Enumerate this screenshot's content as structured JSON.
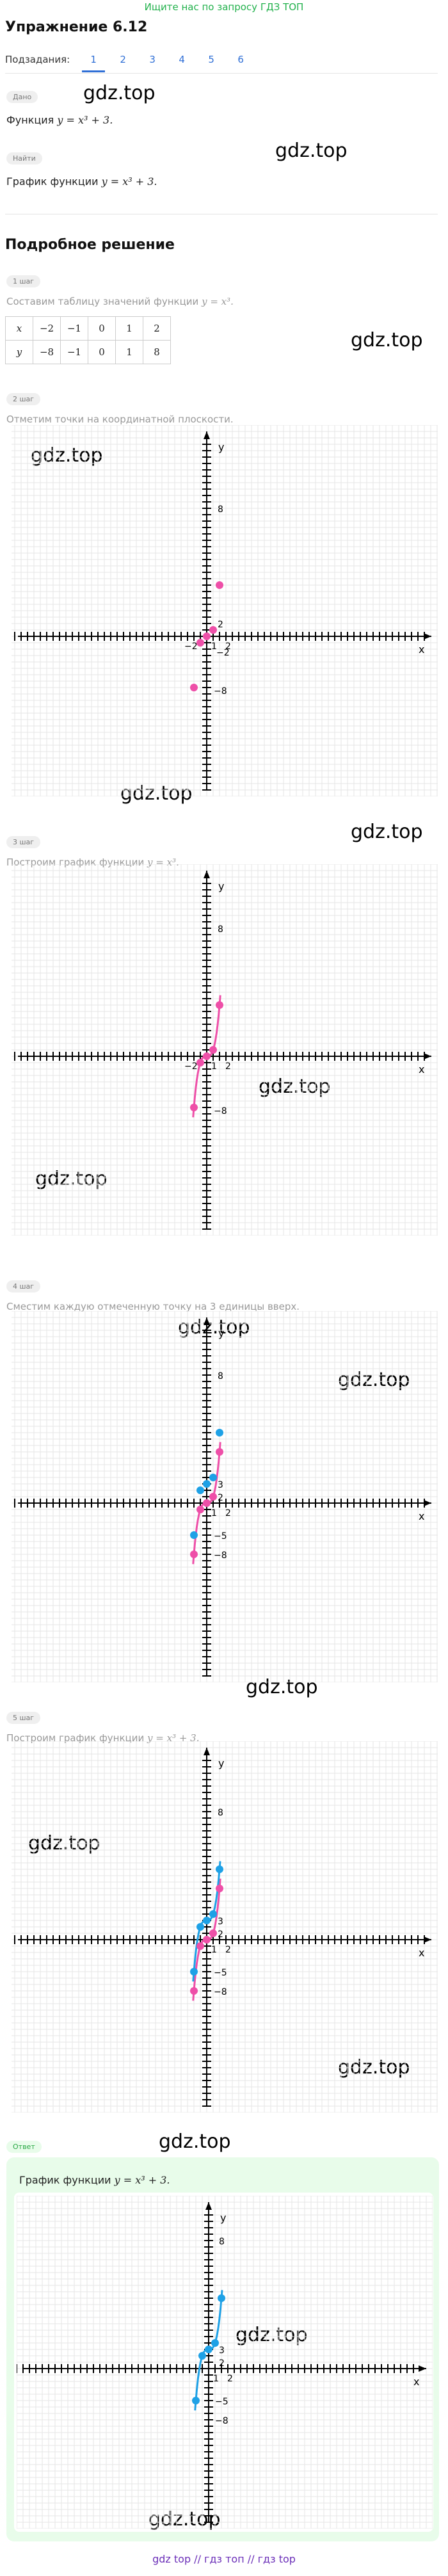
{
  "top_banner": "Ищите нас по запросу ГДЗ ТОП",
  "title": "Упражнение 6.12",
  "subtasks": {
    "label": "Подзадания:",
    "items": [
      "1",
      "2",
      "3",
      "4",
      "5",
      "6"
    ],
    "active": "1"
  },
  "given": {
    "badge": "Дано",
    "text": "Функция",
    "formula": "y = x³ + 3."
  },
  "find": {
    "badge": "Найти",
    "text": "График функции",
    "formula": "y = x³ + 3."
  },
  "solution_heading": "Подробное решение",
  "steps": [
    {
      "badge": "1 шаг",
      "text": "Составим таблицу значений функции",
      "formula": "y = x³."
    },
    {
      "badge": "2 шаг",
      "text": "Отметим точки на координатной плоскости."
    },
    {
      "badge": "3 шаг",
      "text": "Построим график функции",
      "formula": "y = x³."
    },
    {
      "badge": "4 шаг",
      "text": "Сместим каждую отмеченную точку на 3 единицы вверх."
    },
    {
      "badge": "5 шаг",
      "text": "Построим график функции",
      "formula": "y = x³ + 3."
    }
  ],
  "answer": {
    "badge": "Ответ",
    "text": "График функции",
    "formula": "y = x³ + 3."
  },
  "value_table": {
    "headers": [
      "x",
      "y"
    ],
    "x": [
      "−2",
      "−1",
      "0",
      "1",
      "2"
    ],
    "y": [
      "−8",
      "−1",
      "0",
      "1",
      "8"
    ]
  },
  "graphs": {
    "axis_x": "x",
    "axis_y": "y",
    "ticks_g1": [
      "8",
      "2",
      "−2",
      "−8",
      "−2",
      "1",
      "2"
    ],
    "ticks_g2": [
      "8",
      "−8",
      "−2",
      "1",
      "2"
    ],
    "ticks_g3": [
      "8",
      "3",
      "2",
      "−5",
      "−8",
      "1",
      "2"
    ],
    "ticks_g4": [
      "8",
      "3",
      "2",
      "−5",
      "−8",
      "1",
      "2"
    ],
    "ticks_g5": [
      "8",
      "3",
      "2",
      "−5",
      "−8",
      "1",
      "2"
    ]
  },
  "colors": {
    "pink": "#ee4fa8",
    "blue": "#1ea1e6",
    "tab_blue": "#2f6fd6",
    "green_banner": "#22b14c"
  },
  "watermarks": [
    "gdz.top"
  ],
  "footer": "gdz top // гдз топ // гдз top"
}
